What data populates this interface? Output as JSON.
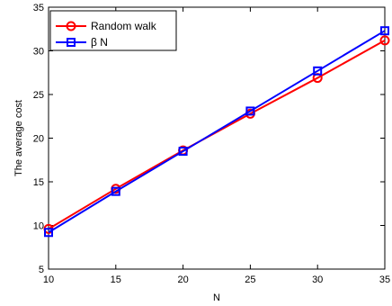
{
  "chart_data": {
    "type": "line",
    "title": "",
    "xlabel": "N",
    "ylabel": "The average cost",
    "xlim": [
      10,
      35
    ],
    "ylim": [
      5,
      35
    ],
    "x_ticks": [
      10,
      15,
      20,
      25,
      30,
      35
    ],
    "y_ticks": [
      5,
      10,
      15,
      20,
      25,
      30,
      35
    ],
    "grid": false,
    "legend_position": "top-left",
    "x": [
      10,
      15,
      20,
      25,
      30,
      35
    ],
    "series": [
      {
        "name": "Random walk",
        "color": "#ff0000",
        "marker": "circle",
        "values": [
          9.6,
          14.2,
          18.6,
          22.8,
          26.9,
          31.2
        ]
      },
      {
        "name": "β N",
        "color": "#0000ff",
        "marker": "square",
        "values": [
          9.2,
          13.9,
          18.5,
          23.1,
          27.7,
          32.3
        ]
      }
    ]
  }
}
